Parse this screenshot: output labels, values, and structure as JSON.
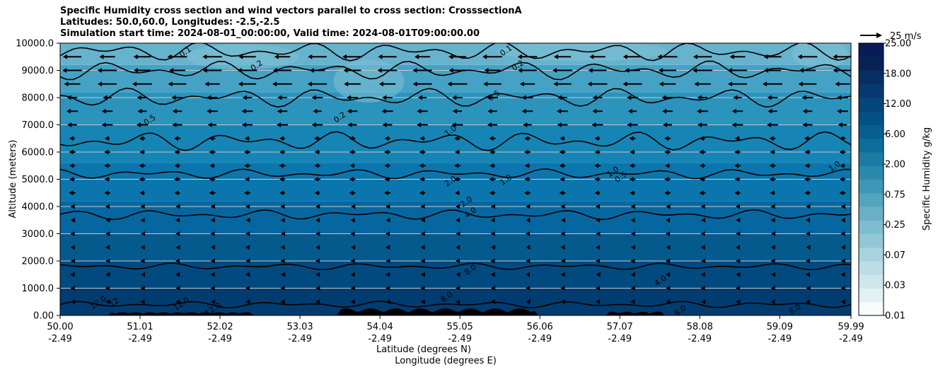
{
  "chart_data": {
    "type": "contour",
    "title": "Specific Humidity cross section and wind vectors parallel to cross section: CrosssectionA",
    "subtitle_lines": [
      "Latitudes: 50.0,60.0, Longitudes: -2.5,-2.5",
      "Simulation start time: 2024-08-01_00:00:00, Valid time: 2024-08-01T09:00:00.00"
    ],
    "ylabel": "Altitude (meters)",
    "xlabel_lines": [
      "Latitude (degrees N)",
      "Longitude (degrees E)"
    ],
    "ylim": [
      0,
      10000
    ],
    "xlim": [
      50.0,
      59.99
    ],
    "yticks": [
      0,
      1000,
      2000,
      3000,
      4000,
      5000,
      6000,
      7000,
      8000,
      9000,
      10000
    ],
    "ytick_labels": [
      "0.00",
      "1000.0",
      "2000.0",
      "3000.0",
      "4000.0",
      "5000.0",
      "6000.0",
      "7000.0",
      "8000.0",
      "9000.0",
      "10000.0"
    ],
    "xticks": [
      50.0,
      51.01,
      52.02,
      53.03,
      54.04,
      55.05,
      56.06,
      57.07,
      58.08,
      59.09,
      59.99
    ],
    "xtick_labels": [
      {
        "lat": "50.00",
        "lon": "-2.49"
      },
      {
        "lat": "51.01",
        "lon": "-2.49"
      },
      {
        "lat": "52.02",
        "lon": "-2.49"
      },
      {
        "lat": "53.03",
        "lon": "-2.49"
      },
      {
        "lat": "54.04",
        "lon": "-2.49"
      },
      {
        "lat": "55.05",
        "lon": "-2.49"
      },
      {
        "lat": "56.06",
        "lon": "-2.49"
      },
      {
        "lat": "57.07",
        "lon": "-2.49"
      },
      {
        "lat": "58.08",
        "lon": "-2.49"
      },
      {
        "lat": "59.09",
        "lon": "-2.49"
      },
      {
        "lat": "59.99",
        "lon": "-2.49"
      }
    ],
    "gridlines_y": true,
    "colorbar": {
      "label": "Specific Humidity g/kg",
      "tick_labels": [
        "0.01",
        "0.03",
        "0.07",
        "0.25",
        "0.75",
        "2.00",
        "6.00",
        "12.00",
        "18.00",
        "25.00"
      ]
    },
    "quiver_key": {
      "label": "25 m/s",
      "speed": 25
    },
    "contour_lines": [
      {
        "level": 12.0,
        "approx_altitude_m": 400
      },
      {
        "level": 8.0,
        "approx_altitude_m": 1800
      },
      {
        "level": 4.0,
        "approx_altitude_m": 3700
      },
      {
        "level": 2.0,
        "approx_altitude_m": 5200
      },
      {
        "level": 1.0,
        "approx_altitude_m": 6400
      },
      {
        "level": 0.5,
        "approx_altitude_m": 8000
      },
      {
        "level": 0.2,
        "approx_altitude_m": 9000
      },
      {
        "level": 0.1,
        "approx_altitude_m": 9700
      }
    ],
    "contour_labels": [
      {
        "text": "0.1",
        "lat": 51.6,
        "alt": 9600
      },
      {
        "text": "0.2",
        "lat": 52.5,
        "alt": 9100
      },
      {
        "text": "0.1",
        "lat": 55.65,
        "alt": 9650
      },
      {
        "text": "0.2",
        "lat": 55.8,
        "alt": 9100
      },
      {
        "text": "0.5",
        "lat": 55.5,
        "alt": 8000
      },
      {
        "text": "0.5",
        "lat": 51.15,
        "alt": 7100
      },
      {
        "text": "0.2",
        "lat": 53.55,
        "alt": 7200
      },
      {
        "text": "1.0",
        "lat": 54.95,
        "alt": 6700
      },
      {
        "text": "2.0",
        "lat": 54.95,
        "alt": 4850
      },
      {
        "text": "2.0",
        "lat": 55.15,
        "alt": 4100
      },
      {
        "text": "1.0",
        "lat": 55.65,
        "alt": 4900
      },
      {
        "text": "1.0",
        "lat": 57.0,
        "alt": 5200
      },
      {
        "text": "0.5",
        "lat": 57.1,
        "alt": 5000
      },
      {
        "text": "1.0",
        "lat": 59.8,
        "alt": 5400
      },
      {
        "text": "4.0",
        "lat": 55.2,
        "alt": 3700
      },
      {
        "text": "8.0",
        "lat": 55.2,
        "alt": 1600
      },
      {
        "text": "8.0",
        "lat": 54.9,
        "alt": 600
      },
      {
        "text": "4.0",
        "lat": 57.6,
        "alt": 1200
      },
      {
        "text": "8.0",
        "lat": 57.85,
        "alt": 100
      },
      {
        "text": "8.0",
        "lat": 59.3,
        "alt": 150
      },
      {
        "text": "12.0",
        "lat": 50.5,
        "alt": 400
      },
      {
        "text": "12.0",
        "lat": 51.55,
        "alt": 350
      },
      {
        "text": "12.0",
        "lat": 51.95,
        "alt": 150
      },
      {
        "text": "12",
        "lat": 50.7,
        "alt": 400
      }
    ]
  }
}
